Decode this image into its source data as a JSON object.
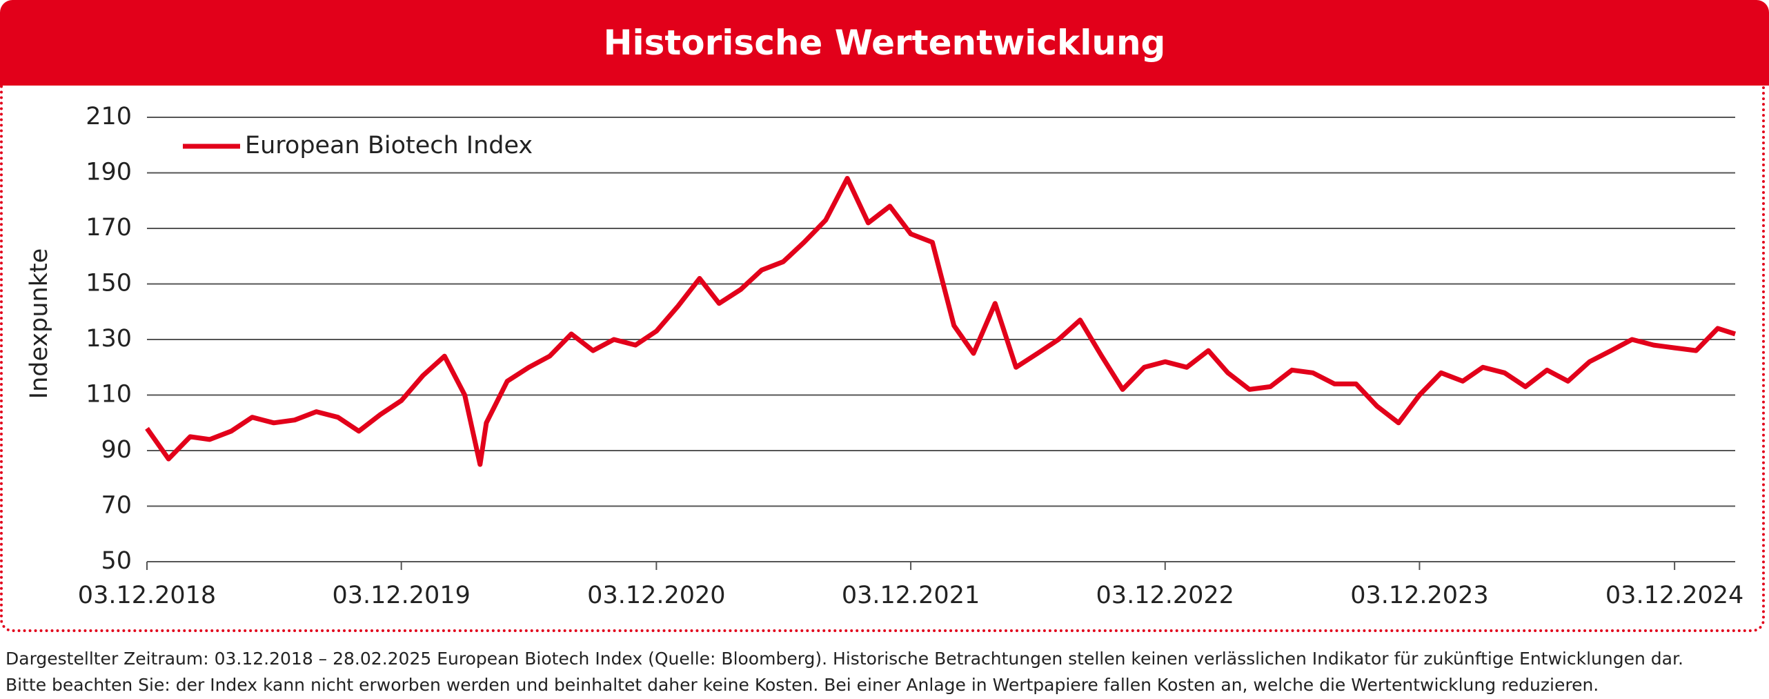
{
  "header": {
    "title": "Historische Wertentwicklung"
  },
  "chart_data": {
    "type": "line",
    "ylabel": "Indexpunkte",
    "x": [
      "03.12.2018",
      "03.01.2019",
      "03.02.2019",
      "03.03.2019",
      "03.04.2019",
      "03.05.2019",
      "03.06.2019",
      "03.07.2019",
      "03.08.2019",
      "03.09.2019",
      "03.10.2019",
      "03.11.2019",
      "03.12.2019",
      "03.01.2020",
      "03.02.2020",
      "03.03.2020",
      "25.03.2020",
      "03.04.2020",
      "03.05.2020",
      "03.06.2020",
      "03.07.2020",
      "03.08.2020",
      "03.09.2020",
      "03.10.2020",
      "03.11.2020",
      "03.12.2020",
      "03.01.2021",
      "03.02.2021",
      "03.03.2021",
      "03.04.2021",
      "03.05.2021",
      "03.06.2021",
      "03.07.2021",
      "03.08.2021",
      "03.09.2021",
      "03.10.2021",
      "03.11.2021",
      "03.12.2021",
      "03.01.2022",
      "03.02.2022",
      "03.03.2022",
      "03.04.2022",
      "03.05.2022",
      "03.06.2022",
      "03.07.2022",
      "03.08.2022",
      "03.09.2022",
      "03.10.2022",
      "03.11.2022",
      "03.12.2022",
      "03.01.2023",
      "03.02.2023",
      "03.03.2023",
      "03.04.2023",
      "03.05.2023",
      "03.06.2023",
      "03.07.2023",
      "03.08.2023",
      "03.09.2023",
      "03.10.2023",
      "03.11.2023",
      "03.12.2023",
      "03.01.2024",
      "03.02.2024",
      "03.03.2024",
      "03.04.2024",
      "03.05.2024",
      "03.06.2024",
      "03.07.2024",
      "03.08.2024",
      "03.09.2024",
      "03.10.2024",
      "03.11.2024",
      "03.12.2024",
      "03.01.2025",
      "03.02.2025",
      "28.02.2025"
    ],
    "series": [
      {
        "name": "European Biotech Index",
        "color": "#e2001a",
        "values": [
          98,
          87,
          95,
          94,
          97,
          102,
          100,
          101,
          104,
          102,
          97,
          103,
          108,
          117,
          124,
          110,
          85,
          100,
          115,
          120,
          124,
          132,
          126,
          130,
          128,
          133,
          142,
          152,
          143,
          148,
          155,
          158,
          165,
          173,
          188,
          172,
          178,
          168,
          165,
          135,
          125,
          143,
          120,
          125,
          130,
          137,
          124,
          112,
          120,
          122,
          120,
          126,
          118,
          112,
          113,
          119,
          118,
          114,
          114,
          106,
          100,
          110,
          118,
          115,
          120,
          118,
          113,
          119,
          115,
          122,
          126,
          130,
          128,
          127,
          126,
          134,
          132
        ]
      }
    ],
    "xlim": [
      "03.12.2018",
      "28.02.2025"
    ],
    "xticks": [
      "03.12.2018",
      "03.12.2019",
      "03.12.2020",
      "03.12.2021",
      "03.12.2022",
      "03.12.2023",
      "03.12.2024"
    ],
    "ylim": [
      50,
      210
    ],
    "yticks": [
      50,
      70,
      90,
      110,
      130,
      150,
      170,
      190,
      210
    ],
    "grid": true,
    "legend": "upper left"
  },
  "footnote": [
    "Dargestellter Zeitraum: 03.12.2018 – 28.02.2025 European Biotech Index (Quelle: Bloomberg). Historische Betrachtungen stellen keinen verlässlichen Indikator für zukünftige Entwicklungen dar.",
    "Bitte beachten Sie: der Index kann nicht erworben werden und beinhaltet daher keine Kosten. Bei einer Anlage in Wertpapiere fallen Kosten an, welche die Wertentwicklung reduzieren."
  ]
}
